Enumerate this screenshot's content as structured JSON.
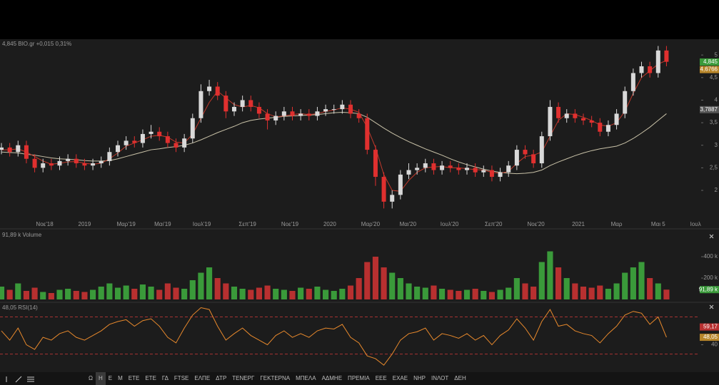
{
  "chart_data": [
    {
      "type": "candlestick",
      "title": "4,845 BIO.gr +0,015 0,31%",
      "title_color": "#4fc24f",
      "xlim": [
        0,
        84
      ],
      "xticks": [
        {
          "value": 5.2,
          "label": "Νοε'18"
        },
        {
          "value": 10,
          "label": "2019"
        },
        {
          "value": 15,
          "label": "Μαρ'19"
        },
        {
          "value": 19.4,
          "label": "Μαι'19"
        },
        {
          "value": 24.1,
          "label": "Ιουλ'19"
        },
        {
          "value": 29.6,
          "label": "Σεπ'19"
        },
        {
          "value": 34.7,
          "label": "Νοε'19"
        },
        {
          "value": 39.5,
          "label": "2020"
        },
        {
          "value": 44.4,
          "label": "Μαρ'20"
        },
        {
          "value": 48.9,
          "label": "Μαι'20"
        },
        {
          "value": 53.9,
          "label": "Ιουλ'20"
        },
        {
          "value": 59.2,
          "label": "Σεπ'20"
        },
        {
          "value": 64.3,
          "label": "Νοε'20"
        },
        {
          "value": 69.4,
          "label": "2021"
        },
        {
          "value": 74,
          "label": "Μαρ"
        },
        {
          "value": 79,
          "label": "Μαι 5"
        },
        {
          "value": 83.5,
          "label": "Ιουλ"
        }
      ],
      "ylim": [
        1.4,
        5.35
      ],
      "yticks": [
        2,
        {
          "value": 2.5,
          "label": "2,5"
        },
        3,
        {
          "value": 3.5,
          "label": "3,5"
        },
        4,
        {
          "value": 4.5,
          "label": "4,5"
        },
        5
      ],
      "up_color": "#d9d9d9",
      "down_color": "#e0302f",
      "open": [
        2.9,
        2.95,
        2.85,
        3.0,
        2.7,
        2.5,
        2.6,
        2.55,
        2.65,
        2.7,
        2.6,
        2.55,
        2.6,
        2.65,
        2.85,
        3.0,
        3.1,
        3.05,
        3.25,
        3.3,
        3.2,
        3.05,
        2.95,
        3.15,
        3.6,
        4.2,
        4.3,
        4.1,
        3.75,
        3.85,
        4.0,
        3.85,
        3.7,
        3.55,
        3.65,
        3.75,
        3.65,
        3.7,
        3.65,
        3.75,
        3.8,
        3.8,
        3.9,
        3.7,
        3.6,
        2.9,
        2.3,
        1.75,
        1.9,
        2.35,
        2.45,
        2.5,
        2.6,
        2.45,
        2.55,
        2.5,
        2.45,
        2.5,
        2.4,
        2.45,
        2.3,
        2.4,
        2.55,
        2.9,
        2.8,
        2.6,
        3.2,
        3.85,
        3.6,
        3.7,
        3.6,
        3.55,
        3.5,
        3.3,
        3.45,
        3.7,
        4.2,
        4.6,
        4.75,
        4.6,
        5.1
      ],
      "high": [
        3.05,
        3.05,
        3.1,
        3.1,
        2.8,
        2.7,
        2.7,
        2.75,
        2.8,
        2.8,
        2.7,
        2.7,
        2.75,
        2.95,
        3.1,
        3.2,
        3.2,
        3.35,
        3.45,
        3.4,
        3.3,
        3.15,
        3.25,
        3.7,
        4.35,
        4.45,
        4.4,
        4.2,
        3.95,
        4.1,
        4.1,
        3.95,
        3.8,
        3.75,
        3.85,
        3.85,
        3.8,
        3.8,
        3.85,
        3.9,
        3.9,
        4.0,
        4.0,
        3.8,
        3.7,
        3.0,
        2.4,
        2.0,
        2.45,
        2.6,
        2.6,
        2.7,
        2.7,
        2.65,
        2.65,
        2.6,
        2.6,
        2.6,
        2.55,
        2.55,
        2.5,
        2.65,
        3.0,
        3.0,
        2.9,
        3.3,
        4.0,
        3.95,
        3.8,
        3.8,
        3.7,
        3.65,
        3.6,
        3.55,
        3.8,
        4.3,
        4.7,
        4.85,
        4.85,
        5.2,
        5.2
      ],
      "low": [
        2.8,
        2.75,
        2.75,
        2.6,
        2.4,
        2.4,
        2.45,
        2.45,
        2.55,
        2.5,
        2.45,
        2.45,
        2.5,
        2.55,
        2.75,
        2.9,
        2.95,
        2.95,
        3.15,
        3.1,
        2.95,
        2.85,
        2.85,
        3.05,
        3.5,
        4.1,
        4.0,
        3.6,
        3.65,
        3.75,
        3.75,
        3.6,
        3.35,
        3.45,
        3.55,
        3.55,
        3.55,
        3.55,
        3.55,
        3.65,
        3.7,
        3.7,
        3.6,
        3.5,
        2.8,
        2.1,
        1.6,
        1.6,
        1.8,
        2.25,
        2.35,
        2.4,
        2.35,
        2.35,
        2.4,
        2.35,
        2.35,
        2.3,
        2.3,
        2.2,
        2.2,
        2.3,
        2.45,
        2.7,
        2.5,
        2.5,
        3.1,
        3.5,
        3.5,
        3.5,
        3.45,
        3.4,
        3.2,
        3.2,
        3.35,
        3.6,
        4.1,
        4.5,
        4.5,
        4.5,
        4.75
      ],
      "close": [
        2.95,
        2.85,
        3.0,
        2.7,
        2.5,
        2.6,
        2.55,
        2.65,
        2.7,
        2.6,
        2.55,
        2.6,
        2.65,
        2.85,
        3.0,
        3.1,
        3.05,
        3.25,
        3.3,
        3.2,
        3.05,
        2.95,
        3.15,
        3.6,
        4.2,
        4.3,
        4.1,
        3.75,
        3.85,
        4.0,
        3.85,
        3.7,
        3.55,
        3.65,
        3.75,
        3.65,
        3.7,
        3.65,
        3.75,
        3.8,
        3.8,
        3.9,
        3.7,
        3.6,
        2.9,
        2.3,
        1.75,
        1.9,
        2.35,
        2.45,
        2.5,
        2.6,
        2.45,
        2.55,
        2.5,
        2.45,
        2.5,
        2.4,
        2.45,
        2.3,
        2.4,
        2.55,
        2.9,
        2.8,
        2.6,
        3.2,
        3.85,
        3.6,
        3.7,
        3.6,
        3.55,
        3.5,
        3.3,
        3.45,
        3.7,
        4.2,
        4.6,
        4.75,
        4.6,
        5.1,
        4.85
      ],
      "lines": [
        {
          "color": "#c9c2a8",
          "values": [
            2.85,
            2.84,
            2.83,
            2.8,
            2.78,
            2.75,
            2.72,
            2.7,
            2.69,
            2.68,
            2.66,
            2.65,
            2.65,
            2.66,
            2.7,
            2.75,
            2.8,
            2.85,
            2.9,
            2.92,
            2.95,
            2.97,
            3.0,
            3.05,
            3.12,
            3.2,
            3.28,
            3.35,
            3.42,
            3.5,
            3.55,
            3.58,
            3.6,
            3.62,
            3.64,
            3.65,
            3.66,
            3.67,
            3.68,
            3.7,
            3.72,
            3.73,
            3.72,
            3.7,
            3.62,
            3.5,
            3.38,
            3.27,
            3.17,
            3.08,
            3.0,
            2.92,
            2.85,
            2.78,
            2.7,
            2.63,
            2.57,
            2.52,
            2.47,
            2.43,
            2.4,
            2.38,
            2.37,
            2.38,
            2.4,
            2.45,
            2.55,
            2.63,
            2.7,
            2.77,
            2.83,
            2.88,
            2.92,
            2.95,
            2.98,
            3.05,
            3.15,
            3.27,
            3.4,
            3.55,
            3.7
          ]
        },
        {
          "color": "#c0392b",
          "values": [
            2.9,
            2.9,
            2.92,
            2.85,
            2.75,
            2.65,
            2.58,
            2.6,
            2.63,
            2.64,
            2.6,
            2.58,
            2.6,
            2.7,
            2.83,
            2.98,
            3.05,
            3.12,
            3.2,
            3.22,
            3.18,
            3.07,
            3.05,
            3.25,
            3.6,
            3.95,
            4.2,
            4.05,
            3.9,
            3.85,
            3.88,
            3.83,
            3.7,
            3.63,
            3.65,
            3.68,
            3.7,
            3.68,
            3.7,
            3.75,
            3.78,
            3.83,
            3.8,
            3.73,
            3.4,
            2.95,
            2.35,
            2.0,
            1.98,
            2.22,
            2.4,
            2.5,
            2.52,
            2.53,
            2.5,
            2.5,
            2.48,
            2.46,
            2.45,
            2.4,
            2.38,
            2.42,
            2.6,
            2.75,
            2.78,
            2.85,
            3.2,
            3.55,
            3.7,
            3.68,
            3.62,
            3.55,
            3.45,
            3.42,
            3.5,
            3.75,
            4.15,
            4.5,
            4.65,
            4.8,
            4.88
          ]
        }
      ],
      "tags": [
        {
          "value": 4.845,
          "label": "4,845",
          "color": "#3a9a3a"
        },
        {
          "value": 4.6766,
          "label": "4,6766",
          "color": "#b8862a"
        },
        {
          "value": 3.7887,
          "label": "3,7887",
          "color": "#555555"
        }
      ]
    },
    {
      "type": "bar",
      "title": "91,89 k Volume",
      "title_color": "#4fc24f",
      "ylim": [
        0,
        647
      ],
      "yticks": [
        {
          "value": 200,
          "label": "200 k"
        },
        {
          "value": 400,
          "label": "400 k"
        }
      ],
      "up_color": "#3a9a3a",
      "down_color": "#b83030",
      "values": [
        120,
        90,
        150,
        80,
        110,
        70,
        60,
        90,
        100,
        80,
        70,
        90,
        120,
        150,
        110,
        130,
        100,
        140,
        120,
        90,
        150,
        110,
        100,
        180,
        250,
        300,
        200,
        150,
        120,
        100,
        90,
        110,
        130,
        100,
        90,
        80,
        110,
        100,
        120,
        90,
        80,
        100,
        130,
        200,
        350,
        400,
        300,
        250,
        200,
        150,
        120,
        110,
        130,
        100,
        90,
        80,
        90,
        100,
        80,
        70,
        90,
        110,
        200,
        150,
        120,
        350,
        450,
        300,
        200,
        150,
        120,
        110,
        130,
        100,
        150,
        250,
        300,
        350,
        200,
        150,
        91.89
      ],
      "tags": [
        {
          "value": 91.89,
          "label": "91,89 k",
          "color": "#3a9a3a"
        }
      ]
    },
    {
      "type": "line",
      "title": "48,05 RSI(14)",
      "title_color": "#e8892c",
      "color": "#e8892c",
      "ylim": [
        12,
        85
      ],
      "yticks": [
        40,
        60
      ],
      "levels": [
        70,
        30
      ],
      "level_color": "#a83232",
      "values": [
        55,
        45,
        58,
        40,
        35,
        48,
        45,
        52,
        55,
        48,
        45,
        50,
        55,
        62,
        65,
        67,
        60,
        66,
        68,
        60,
        48,
        42,
        58,
        72,
        80,
        78,
        60,
        45,
        52,
        58,
        50,
        45,
        40,
        50,
        55,
        48,
        52,
        48,
        55,
        58,
        57,
        62,
        48,
        42,
        28,
        25,
        18,
        30,
        45,
        52,
        54,
        58,
        45,
        52,
        50,
        47,
        52,
        45,
        50,
        40,
        50,
        56,
        68,
        58,
        45,
        65,
        78,
        60,
        62,
        55,
        52,
        50,
        42,
        52,
        60,
        72,
        76,
        74,
        62,
        70,
        48.05
      ],
      "tags": [
        {
          "value": 59.17,
          "label": "59,17",
          "color": "#b83030"
        },
        {
          "value": 48.05,
          "label": "48,05",
          "color": "#b8862a"
        }
      ]
    }
  ],
  "toolbar": {
    "tabs": [
      "Ω",
      "Η",
      "Ε",
      "Μ",
      "ΕΤΕ",
      "ΕΤΕ",
      "ΓΔ",
      "FTSE",
      "ΕΛΠΕ",
      "ΔΤΡ",
      "ΤΕΝΕΡΓ",
      "ΓΕΚΤΕΡΝΑ",
      "ΜΠΕΛΑ",
      "ΑΔΜΗΕ",
      "ΠΡΕΜΙΑ",
      "ΕΕΕ",
      "ΕΧΑΕ",
      "ΝΗΡ",
      "ΙΝΛΟΤ",
      "ΔΕΗ"
    ],
    "active": 1
  }
}
